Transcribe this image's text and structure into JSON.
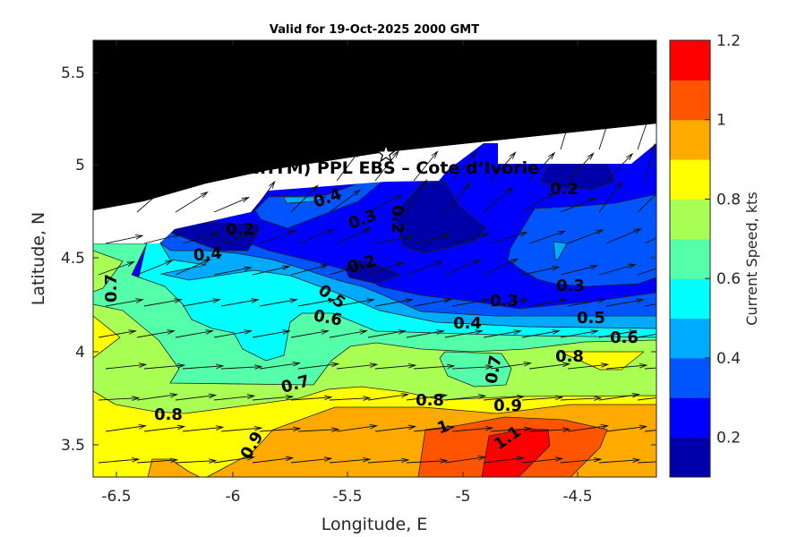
{
  "chart_data": {
    "type": "contour",
    "title": "Valid for 19-Oct-2025 2000 GMT",
    "xlabel": "Longitude, E",
    "ylabel": "Latitude, N",
    "xlim": [
      -6.6,
      -4.16
    ],
    "ylim": [
      3.33,
      5.67
    ],
    "xticks": [
      "-6.5",
      "-6",
      "-5.5",
      "-5",
      "-4.5"
    ],
    "yticks": [
      "3.5",
      "4",
      "4.5",
      "5",
      "5.5"
    ],
    "overlay_text": "A (ONHYM) PPL EBS  – Cote d’Ivorie",
    "site_marker": {
      "symbol": "star",
      "lon": -5.35,
      "lat": 5.06
    },
    "colorbar": {
      "label": "Current Speed, kts",
      "levels": [
        0.1,
        0.2,
        0.3,
        0.4,
        0.5,
        0.6,
        0.7,
        0.8,
        0.9,
        1.0,
        1.1,
        1.2
      ],
      "colors": [
        "#0000AA",
        "#0000FF",
        "#0055FF",
        "#00AAFF",
        "#00FFFF",
        "#55FFAA",
        "#AAFF55",
        "#FFFF00",
        "#FFAA00",
        "#FF5500",
        "#FF0000"
      ],
      "ticks": [
        "0.2",
        "0.4",
        "0.6",
        "0.8",
        "1",
        "1.2"
      ]
    },
    "contour_labels": [
      "0.4",
      "0.3",
      "0.2",
      "0.2",
      "0.2",
      "0.4",
      "0.2",
      "0.7",
      "0.5",
      "0.6",
      "0.3",
      "0.4",
      "0.3",
      "0.5",
      "0.6",
      "0.8",
      "0.7",
      "0.7",
      "0.8",
      "0.9",
      "0.8",
      "1",
      "1.1",
      "0.9"
    ],
    "land_color": "#000000",
    "vectors": "current direction arrows, mostly eastward offshore, northward/north-eastward near the coast"
  }
}
